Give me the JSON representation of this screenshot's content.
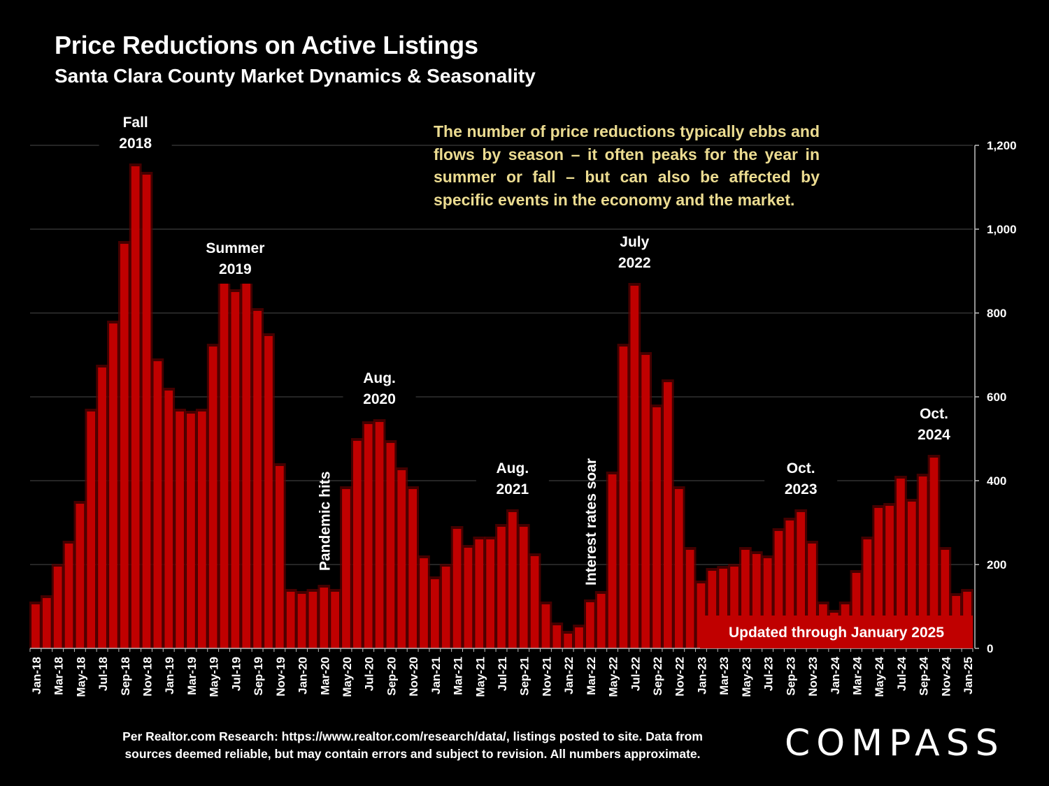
{
  "chart_data": {
    "type": "bar",
    "title": "Price Reductions on Active Listings",
    "subtitle": "Santa Clara County Market Dynamics & Seasonality",
    "ylim": [
      0,
      1200
    ],
    "yticks": [
      0,
      200,
      400,
      600,
      800,
      1000,
      1200
    ],
    "ytick_labels": [
      "0",
      "200",
      "400",
      "600",
      "800",
      "1,000",
      "1,200"
    ],
    "axis_side": "right",
    "grid": true,
    "bar_color": "#c00000",
    "x_tick_labels": [
      "Jan-18",
      "Mar-18",
      "May-18",
      "Jul-18",
      "Sep-18",
      "Nov-18",
      "Jan-19",
      "Mar-19",
      "May-19",
      "Jul-19",
      "Sep-19",
      "Nov-19",
      "Jan-20",
      "Mar-20",
      "May-20",
      "Jul-20",
      "Sep-20",
      "Nov-20",
      "Jan-21",
      "Mar-21",
      "May-21",
      "Jul-21",
      "Sep-21",
      "Nov-21",
      "Jan-22",
      "Mar-22",
      "May-22",
      "Jul-22",
      "Sep-22",
      "Nov-22",
      "Jan-23",
      "Mar-23",
      "May-23",
      "Jul-23",
      "Sep-23",
      "Nov-23",
      "Jan-24",
      "Mar-24",
      "May-24",
      "Jul-24",
      "Sep-24",
      "Nov-24",
      "Jan-25"
    ],
    "values": [
      105,
      120,
      195,
      250,
      345,
      565,
      670,
      775,
      965,
      1150,
      1130,
      685,
      615,
      565,
      560,
      565,
      720,
      875,
      850,
      870,
      805,
      745,
      435,
      135,
      130,
      135,
      145,
      135,
      380,
      495,
      535,
      540,
      490,
      425,
      380,
      215,
      165,
      195,
      285,
      240,
      260,
      260,
      290,
      325,
      290,
      220,
      105,
      55,
      35,
      50,
      110,
      130,
      415,
      720,
      865,
      700,
      575,
      635,
      380,
      235,
      155,
      185,
      190,
      195,
      235,
      225,
      215,
      280,
      305,
      325,
      250,
      105,
      85,
      105,
      180,
      260,
      335,
      340,
      405,
      350,
      410,
      455,
      235,
      125,
      135
    ],
    "annotations": [
      {
        "lines": [
          "Fall",
          "2018"
        ],
        "month": 9
      },
      {
        "lines": [
          "Summer",
          "2019"
        ],
        "month": 18
      },
      {
        "lines": [
          "Aug.",
          "2020"
        ],
        "month": 31
      },
      {
        "lines": [
          "Aug.",
          "2021"
        ],
        "month": 43
      },
      {
        "lines": [
          "July",
          "2022"
        ],
        "month": 54
      },
      {
        "lines": [
          "Oct.",
          "2023"
        ],
        "month": 69
      },
      {
        "lines": [
          "Oct.",
          "2024"
        ],
        "month": 81
      }
    ],
    "vertical_annotations": [
      {
        "text": "Pandemic hits",
        "month": 26
      },
      {
        "text": "Interest rates soar",
        "month": 50
      }
    ],
    "badge": "Updated through January 2025"
  },
  "callout": "The number of price reductions typically ebbs and flows by season – it often peaks for the year in summer or fall – but can also be affected by specific events in the economy and the market.",
  "footnote": {
    "line1": "Per Realtor.com Research:  https://www.realtor.com/research/data/, listings posted to site. Data from",
    "line2": "sources deemed reliable, but may contain errors and subject to revision. All numbers approximate."
  },
  "logo": "COMPASS"
}
